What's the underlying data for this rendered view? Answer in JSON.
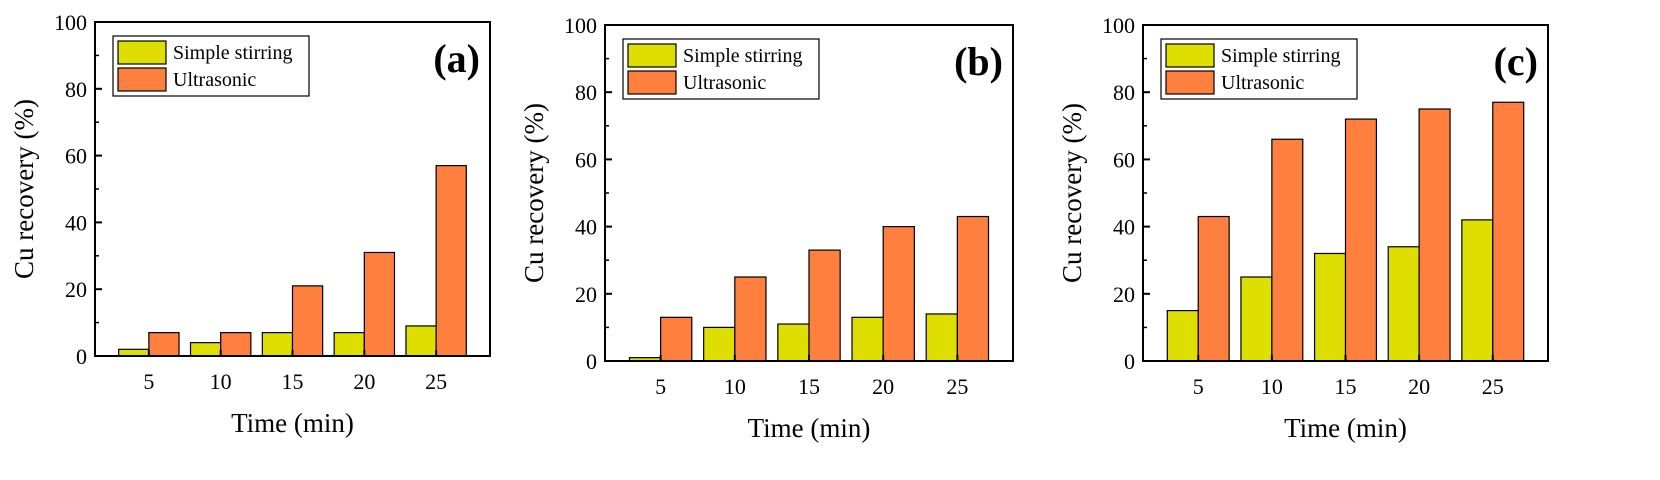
{
  "colors": {
    "simple_stirring": "#dede00",
    "ultrasonic": "#ff7f3f",
    "axis": "#000000",
    "background": "#ffffff"
  },
  "chart_data": [
    {
      "type": "bar",
      "panel_label": "(a)",
      "xlabel": "Time (min)",
      "ylabel": "Cu recovery (%)",
      "categories": [
        "5",
        "10",
        "15",
        "20",
        "25"
      ],
      "ylim": [
        0,
        100
      ],
      "yticks": [
        "0",
        "20",
        "40",
        "60",
        "80",
        "100"
      ],
      "grid": false,
      "legend_position": "top-left",
      "series": [
        {
          "name": "Simple stirring",
          "values": [
            2,
            4,
            7,
            7,
            9
          ]
        },
        {
          "name": "Ultrasonic",
          "values": [
            7,
            7,
            21,
            31,
            57
          ]
        }
      ]
    },
    {
      "type": "bar",
      "panel_label": "(b)",
      "xlabel": "Time (min)",
      "ylabel": "Cu recovery (%)",
      "categories": [
        "5",
        "10",
        "15",
        "20",
        "25"
      ],
      "ylim": [
        0,
        100
      ],
      "yticks": [
        "0",
        "20",
        "40",
        "60",
        "80",
        "100"
      ],
      "grid": false,
      "legend_position": "top-left",
      "series": [
        {
          "name": "Simple stirring",
          "values": [
            1,
            10,
            11,
            13,
            14
          ]
        },
        {
          "name": "Ultrasonic",
          "values": [
            13,
            25,
            33,
            40,
            43
          ]
        }
      ]
    },
    {
      "type": "bar",
      "panel_label": "(c)",
      "xlabel": "Time (min)",
      "ylabel": "Cu recovery (%)",
      "categories": [
        "5",
        "10",
        "15",
        "20",
        "25"
      ],
      "ylim": [
        0,
        100
      ],
      "yticks": [
        "0",
        "20",
        "40",
        "60",
        "80",
        "100"
      ],
      "grid": false,
      "legend_position": "top-left",
      "series": [
        {
          "name": "Simple stirring",
          "values": [
            15,
            25,
            32,
            34,
            42
          ]
        },
        {
          "name": "Ultrasonic",
          "values": [
            43,
            66,
            72,
            75,
            77
          ]
        }
      ]
    }
  ]
}
